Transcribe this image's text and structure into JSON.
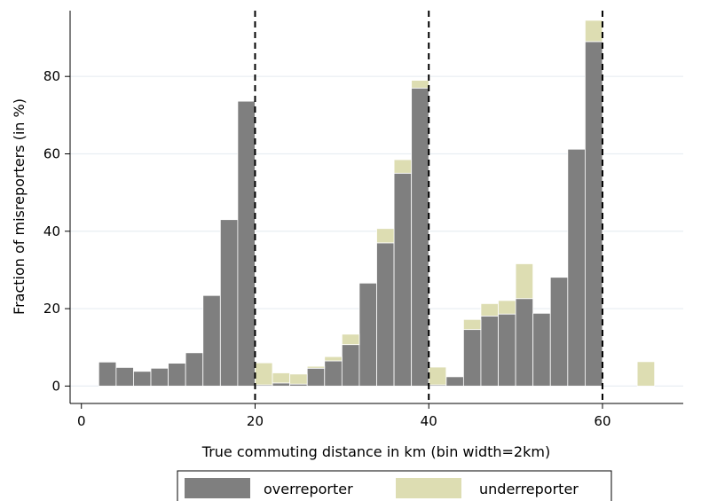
{
  "chart_data": {
    "type": "bar",
    "stacked": true,
    "xlabel": "True commuting distance in km (bin width=2km)",
    "ylabel": "Fraction of misreporters (in %)",
    "xlim": [
      -1.3,
      69.3
    ],
    "ylim": [
      -4.5,
      97
    ],
    "x_ticks": [
      0,
      20,
      40,
      60
    ],
    "y_ticks": [
      0,
      20,
      40,
      60,
      80
    ],
    "bin_width": 2,
    "grid": "horizontal",
    "reference_lines_x": [
      20,
      40,
      60
    ],
    "legend_position": "bottom",
    "colors": {
      "overreporter": "#7f7f7f",
      "underreporter": "#ddddb2",
      "grid": "#e8eef2"
    },
    "series": [
      {
        "name": "overreporter",
        "x": [
          3,
          5,
          7,
          9,
          11,
          13,
          15,
          17,
          19,
          21,
          23,
          25,
          27,
          29,
          31,
          33,
          35,
          37,
          39,
          41,
          43,
          45,
          47,
          49,
          51,
          53,
          55,
          57,
          59
        ],
        "values": [
          6.2,
          4.8,
          3.8,
          4.6,
          5.9,
          8.6,
          23.4,
          43.0,
          73.6,
          0.3,
          0.8,
          0.5,
          4.6,
          6.5,
          10.7,
          26.6,
          37.0,
          55.0,
          77.0,
          0.3,
          2.4,
          14.6,
          18.1,
          18.6,
          22.6,
          18.8,
          28.1,
          61.2,
          89.0
        ]
      },
      {
        "name": "underreporter",
        "x": [
          3,
          5,
          7,
          9,
          11,
          13,
          15,
          17,
          19,
          21,
          23,
          25,
          27,
          29,
          31,
          33,
          35,
          37,
          39,
          41,
          43,
          45,
          47,
          49,
          51,
          53,
          55,
          57,
          59,
          65
        ],
        "values": [
          0,
          0,
          0,
          0,
          0,
          0,
          0,
          0,
          0,
          5.7,
          2.6,
          2.6,
          0.5,
          1.1,
          2.7,
          0,
          3.7,
          3.5,
          2.0,
          4.6,
          0,
          2.6,
          3.2,
          3.5,
          9.0,
          0,
          0,
          0,
          5.5,
          6.3
        ]
      }
    ]
  }
}
